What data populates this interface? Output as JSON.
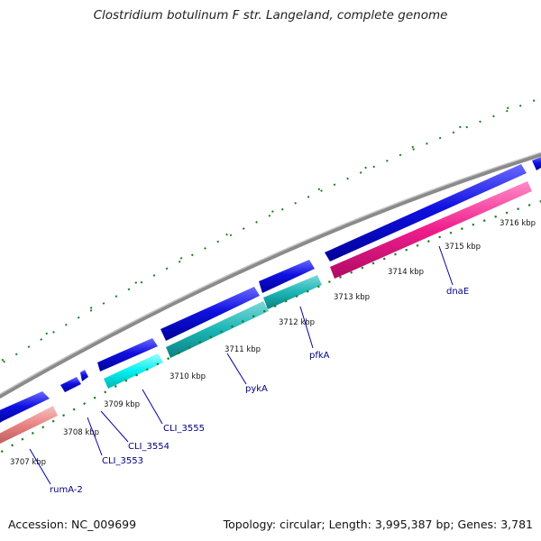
{
  "title": "Clostridium botulinum F str. Langeland, complete genome",
  "footer": {
    "accession": "Accession: NC_009699",
    "topology": "Topology: circular; Length: 3,995,387 bp; Genes: 3,781"
  },
  "colors": {
    "backbone": "#888888",
    "forward_gene": "#0c0ce0",
    "reverse_gene_cyan": "#00f0f0",
    "reverse_gene_teal": "#19b8b8",
    "reverse_gene_pink": "#ee1d8c",
    "reverse_gene_salmon": "#e88080",
    "tick": "#1f7a1f",
    "label_line": "#0000aa"
  },
  "ticks_kbp": [
    "3707 kbp",
    "3708 kbp",
    "3709 kbp",
    "3710 kbp",
    "3711 kbp",
    "3712 kbp",
    "3713 kbp",
    "3714 kbp",
    "3715 kbp",
    "3716 kbp"
  ],
  "gene_labels": [
    "rumA-2",
    "CLI_3553",
    "CLI_3554",
    "CLI_3555",
    "pykA",
    "pfkA",
    "dnaE"
  ]
}
